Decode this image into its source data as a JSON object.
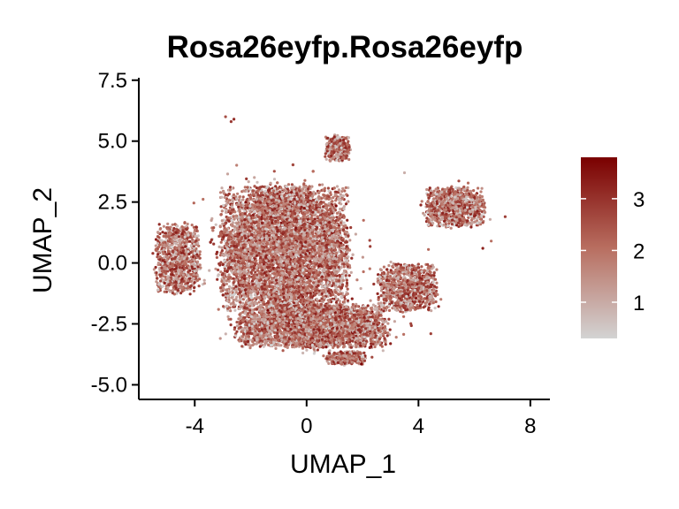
{
  "chart_data": {
    "type": "scatter",
    "title": "Rosa26eyfp.Rosa26eyfp",
    "xlabel": "UMAP_1",
    "ylabel": "UMAP_2",
    "xlim": [
      -6,
      8.7
    ],
    "ylim": [
      -5.6,
      7.6
    ],
    "x_ticks": [
      -4,
      0,
      4,
      8
    ],
    "x_tick_labels": [
      "-4",
      "0",
      "4",
      "8"
    ],
    "y_ticks": [
      -5.0,
      -2.5,
      0.0,
      2.5,
      5.0,
      7.5
    ],
    "y_tick_labels": [
      "-5.0",
      "-2.5",
      "0.0",
      "2.5",
      "5.0",
      "7.5"
    ],
    "grid": false,
    "legend": {
      "type": "colorbar",
      "placement": "right",
      "min": 0.3,
      "max": 3.8,
      "ticks": [
        1,
        2,
        3
      ],
      "tick_labels": [
        "1",
        "2",
        "3"
      ],
      "low_color": "#d3d3d3",
      "high_color": "#7a0000"
    },
    "clusters": [
      {
        "region": "main-body",
        "center": [
          -0.8,
          0.6
        ],
        "spread": [
          2.6,
          2.9
        ],
        "approx_points": 7000
      },
      {
        "region": "left-lobe",
        "center": [
          -4.6,
          0.2
        ],
        "spread": [
          0.9,
          1.6
        ],
        "approx_points": 900
      },
      {
        "region": "lower-body",
        "center": [
          0.2,
          -2.6
        ],
        "spread": [
          3.0,
          1.0
        ],
        "approx_points": 3500
      },
      {
        "region": "top-peak",
        "center": [
          1.1,
          4.7
        ],
        "spread": [
          0.5,
          0.6
        ],
        "approx_points": 300
      },
      {
        "region": "right-lobe",
        "center": [
          5.3,
          2.3
        ],
        "spread": [
          1.2,
          0.9
        ],
        "approx_points": 900
      },
      {
        "region": "right-lower",
        "center": [
          3.6,
          -1.0
        ],
        "spread": [
          1.2,
          1.1
        ],
        "approx_points": 900
      },
      {
        "region": "bottom-tail",
        "center": [
          1.4,
          -3.9
        ],
        "spread": [
          0.8,
          0.3
        ],
        "approx_points": 300
      }
    ],
    "outlier_points": [
      [
        -2.9,
        6.0
      ],
      [
        -2.7,
        5.8
      ],
      [
        -2.6,
        5.9
      ],
      [
        6.6,
        0.9
      ],
      [
        6.3,
        0.6
      ],
      [
        7.1,
        1.9
      ],
      [
        3.5,
        3.7
      ]
    ]
  }
}
